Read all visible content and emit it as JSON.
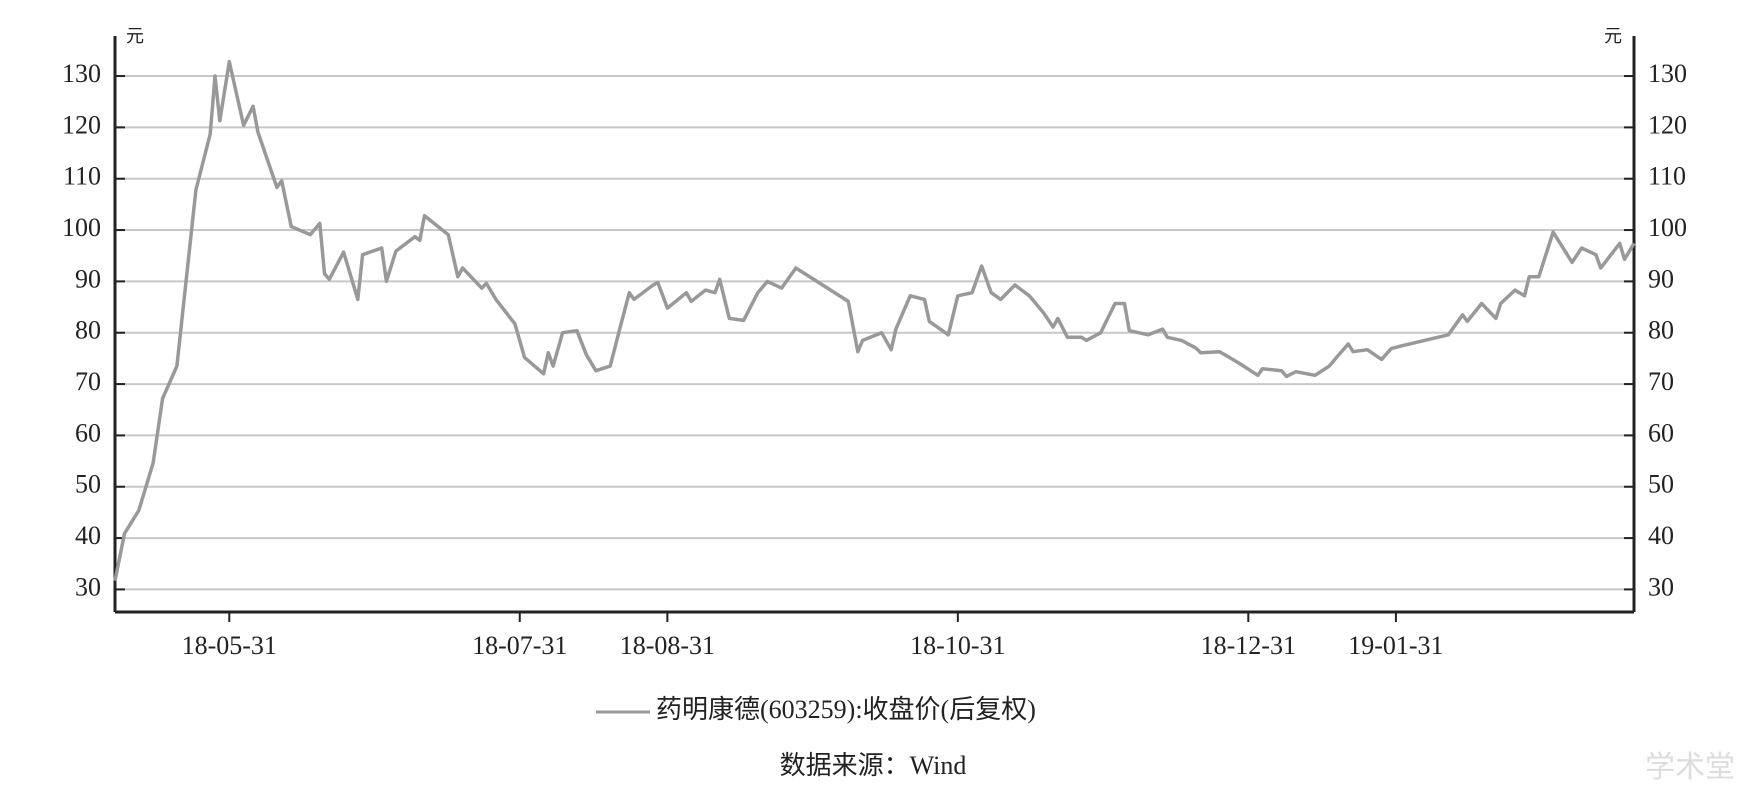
{
  "chart_data": {
    "type": "line",
    "unit_left": "元",
    "unit_right": "元",
    "source": "数据来源：Wind",
    "watermark": "学术堂",
    "x": [
      "18-05-07",
      "18-05-09",
      "18-05-12",
      "18-05-15",
      "18-05-17",
      "18-05-20",
      "18-05-24",
      "18-05-27",
      "18-05-28",
      "18-05-29",
      "18-05-31",
      "18-06-03",
      "18-06-05",
      "18-06-06",
      "18-06-10",
      "18-06-11",
      "18-06-13",
      "18-06-17",
      "18-06-19",
      "18-06-20",
      "18-06-21",
      "18-06-24",
      "18-06-27",
      "18-06-28",
      "18-07-02",
      "18-07-03",
      "18-07-05",
      "18-07-09",
      "18-07-10",
      "18-07-11",
      "18-07-16",
      "18-07-18",
      "18-07-19",
      "18-07-23",
      "18-07-24",
      "18-07-26",
      "18-07-30",
      "18-08-01",
      "18-08-05",
      "18-08-06",
      "18-08-07",
      "18-08-09",
      "18-08-12",
      "18-08-14",
      "18-08-16",
      "18-08-19",
      "18-08-21",
      "18-08-23",
      "18-08-24",
      "18-08-28",
      "18-08-29",
      "18-08-31",
      "18-09-04",
      "18-09-05",
      "18-09-08",
      "18-09-10",
      "18-09-11",
      "18-09-13",
      "18-09-16",
      "18-09-19",
      "18-09-21",
      "18-09-24",
      "18-09-27",
      "18-10-08",
      "18-10-10",
      "18-10-11",
      "18-10-15",
      "18-10-17",
      "18-10-18",
      "18-10-21",
      "18-10-24",
      "18-10-25",
      "18-10-29",
      "18-10-31",
      "18-11-03",
      "18-11-05",
      "18-11-07",
      "18-11-09",
      "18-11-12",
      "18-11-15",
      "18-11-18",
      "18-11-20",
      "18-11-21",
      "18-11-23",
      "18-11-26",
      "18-11-27",
      "18-11-30",
      "18-12-03",
      "18-12-05",
      "18-12-06",
      "18-12-10",
      "18-12-13",
      "18-12-14",
      "18-12-17",
      "18-12-20",
      "18-12-21",
      "18-12-25",
      "18-12-29",
      "19-01-02",
      "19-01-03",
      "19-01-07",
      "19-01-08",
      "19-01-10",
      "19-01-14",
      "19-01-17",
      "19-01-19",
      "19-01-21",
      "19-01-22",
      "19-01-25",
      "19-01-28",
      "19-01-30",
      "19-02-01",
      "19-02-11",
      "19-02-14",
      "19-02-15",
      "19-02-18",
      "19-02-21",
      "19-02-22",
      "19-02-25",
      "19-02-27",
      "19-02-28",
      "19-03-02",
      "19-03-05",
      "19-03-09",
      "19-03-11",
      "19-03-14",
      "19-03-15",
      "19-03-19",
      "19-03-20",
      "19-03-22"
    ],
    "series": [
      {
        "name": "药明康德(603259):收盘价(后复权)",
        "color": "#999999",
        "values": [
          31.7,
          40.9,
          45.4,
          54.6,
          67.2,
          73.5,
          107.8,
          118.7,
          130,
          121.3,
          132.8,
          120.4,
          124.1,
          119.1,
          108.3,
          109.6,
          100.7,
          99.1,
          101.3,
          91.5,
          90.4,
          95.7,
          86.5,
          95.2,
          96.5,
          90.0,
          95.9,
          98.7,
          98.0,
          102.8,
          99.1,
          90.9,
          92.6,
          88.7,
          89.6,
          86.5,
          81.7,
          75.2,
          72.0,
          76.1,
          73.5,
          80.0,
          80.4,
          75.7,
          72.6,
          73.5,
          80.7,
          87.8,
          86.5,
          89.3,
          89.8,
          84.8,
          87.8,
          86.1,
          88.3,
          87.8,
          90.4,
          82.8,
          82.4,
          87.8,
          90.0,
          88.7,
          92.6,
          86.1,
          76.3,
          78.5,
          80.0,
          76.7,
          80.7,
          87.2,
          86.5,
          82.2,
          79.6,
          87.2,
          87.8,
          93.0,
          87.8,
          86.5,
          89.3,
          87.2,
          83.9,
          81.1,
          82.8,
          79.1,
          79.1,
          78.5,
          80.0,
          85.7,
          85.7,
          80.4,
          79.6,
          80.7,
          79.1,
          78.5,
          77.0,
          76.1,
          76.3,
          74.1,
          71.7,
          73.0,
          72.6,
          71.5,
          72.4,
          71.7,
          73.5,
          75.7,
          77.8,
          76.3,
          76.7,
          74.8,
          76.9,
          77.4,
          79.6,
          83.5,
          82.2,
          85.7,
          82.8,
          85.7,
          88.3,
          87.2,
          90.9,
          90.9,
          99.6,
          93.7,
          96.5,
          95.2,
          92.6,
          97.4,
          94.3,
          97.4
        ]
      }
    ],
    "xlim": [
      "18-05-07",
      "19-03-22"
    ],
    "xticks": [
      "18-05-31",
      "18-07-31",
      "18-08-31",
      "18-10-31",
      "18-12-31",
      "19-01-31"
    ],
    "ylim": [
      25.6,
      137.8
    ],
    "yticks": [
      30,
      40,
      50,
      60,
      70,
      80,
      90,
      100,
      110,
      120,
      130
    ],
    "y2lim": [
      25.6,
      137.8
    ],
    "y2ticks": [
      30,
      40,
      50,
      60,
      70,
      80,
      90,
      100,
      110,
      120,
      130
    ],
    "grid": true
  }
}
